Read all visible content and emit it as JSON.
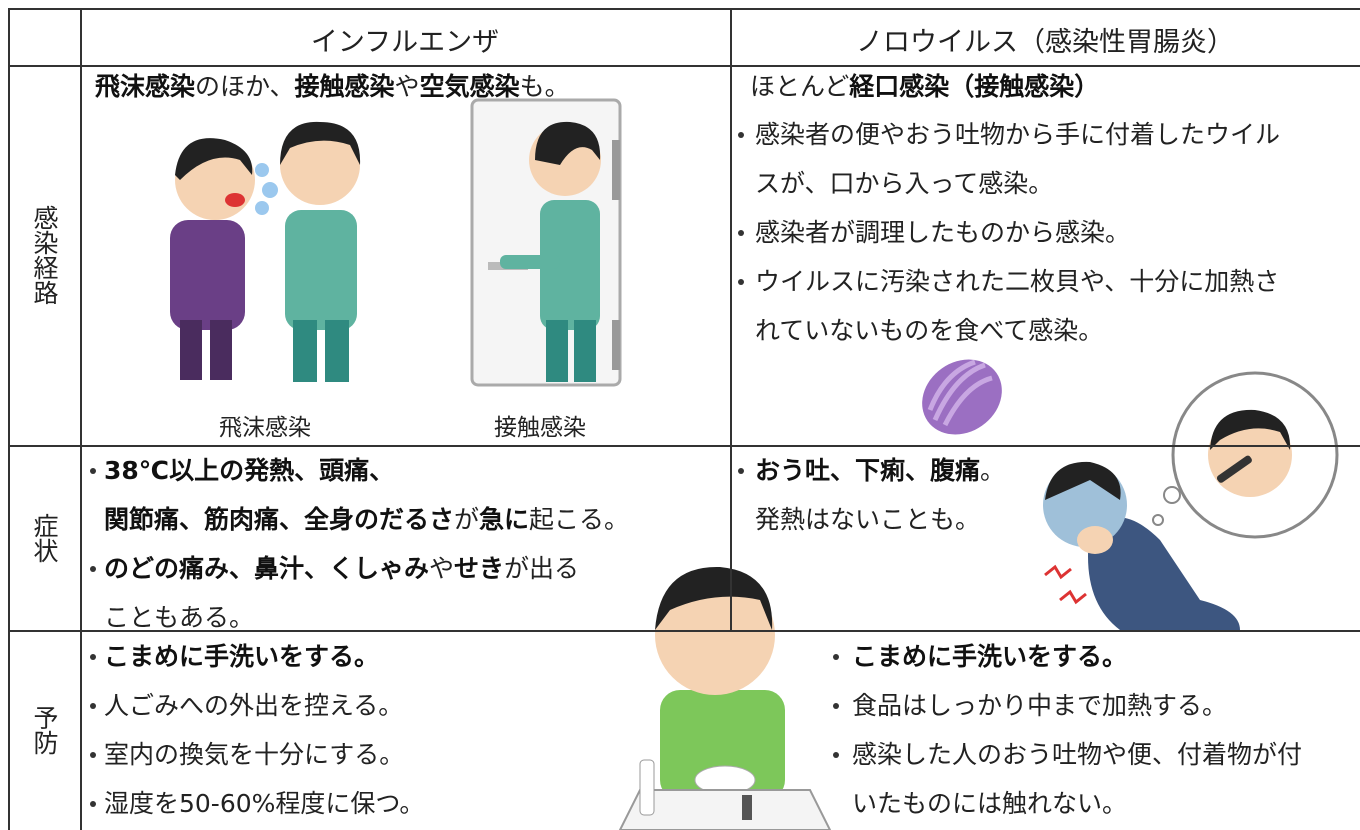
{
  "table": {
    "header": [
      "インフルエンザ",
      "ノロウイルス（感染性胃腸炎）"
    ],
    "rows": [
      {
        "label": "感染経路",
        "flu": {
          "lines": [
            [
              {
                "text": "飛沫感染",
                "bold": true
              },
              {
                "text": "のほか、"
              },
              {
                "text": "接触感染",
                "bold": true
              },
              {
                "text": "や"
              },
              {
                "text": "空気感染",
                "bold": true
              },
              {
                "text": "も。"
              }
            ]
          ],
          "captions": [
            "飛沫感染",
            "接触感染"
          ]
        },
        "noro": {
          "lines": [
            [
              {
                "text": "ほとんど"
              },
              {
                "text": "経口感染（接触感染）",
                "bold": true
              }
            ]
          ],
          "items": [
            {
              "lines": [
                [
                  {
                    "text": "感染者の便やおう吐物から手に付着したウイル"
                  }
                ],
                [
                  {
                    "text": "スが、口から入って感染。"
                  }
                ]
              ]
            },
            {
              "lines": [
                [
                  {
                    "text": "感染者が調理したものから感染。"
                  }
                ]
              ]
            },
            {
              "lines": [
                [
                  {
                    "text": "ウイルスに汚染された二枚貝や、十分に加熱さ"
                  }
                ],
                [
                  {
                    "text": "れていないものを食べて感染。"
                  }
                ]
              ]
            }
          ]
        }
      },
      {
        "label": "症状",
        "flu": {
          "items": [
            {
              "lines": [
                [
                  {
                    "text": "38℃以上の発熱、頭痛、",
                    "bold": true
                  }
                ],
                [
                  {
                    "text": "関節痛、筋肉痛、全身のだるさ",
                    "bold": true
                  },
                  {
                    "text": "が"
                  },
                  {
                    "text": "急に",
                    "bold": true
                  },
                  {
                    "text": "起こる。"
                  }
                ]
              ]
            },
            {
              "lines": [
                [
                  {
                    "text": "のどの痛み、鼻汁、くしゃみ",
                    "bold": true
                  },
                  {
                    "text": "や"
                  },
                  {
                    "text": "せき",
                    "bold": true
                  },
                  {
                    "text": "が出る"
                  }
                ],
                [
                  {
                    "text": "こともある。"
                  }
                ]
              ]
            }
          ]
        },
        "noro": {
          "items": [
            {
              "lines": [
                [
                  {
                    "text": "おう吐、下痢、腹痛",
                    "bold": true
                  },
                  {
                    "text": "。"
                  }
                ],
                [
                  {
                    "text": "発熱はないことも。"
                  }
                ]
              ]
            }
          ]
        }
      },
      {
        "label": "予防",
        "flu": {
          "items": [
            {
              "lines": [
                [
                  {
                    "text": "こまめに手洗いをする。",
                    "bold": true
                  }
                ]
              ]
            },
            {
              "lines": [
                [
                  {
                    "text": "人ごみへの外出を控える。"
                  }
                ]
              ]
            },
            {
              "lines": [
                [
                  {
                    "text": "室内の換気を十分にする。"
                  }
                ]
              ]
            },
            {
              "lines": [
                [
                  {
                    "text": "湿度を50-60%程度に保つ。"
                  }
                ]
              ]
            }
          ]
        },
        "noro": {
          "items": [
            {
              "lines": [
                [
                  {
                    "text": "こまめに手洗いをする。",
                    "bold": true
                  }
                ]
              ]
            },
            {
              "lines": [
                [
                  {
                    "text": "食品はしっかり中まで加熱する。"
                  }
                ]
              ]
            },
            {
              "lines": [
                [
                  {
                    "text": "感染した人のおう吐物や便、付着物が付"
                  }
                ],
                [
                  {
                    "text": "いたものには触れない。"
                  }
                ]
              ]
            }
          ]
        }
      }
    ]
  }
}
